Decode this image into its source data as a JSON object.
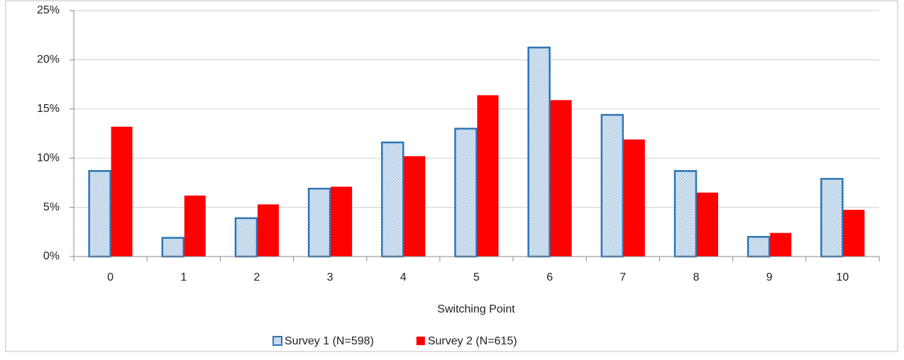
{
  "chart_data": {
    "type": "bar",
    "x_label": "Switching Point",
    "categories": [
      "0",
      "1",
      "2",
      "3",
      "4",
      "5",
      "6",
      "7",
      "8",
      "9",
      "10"
    ],
    "series": [
      {
        "name": "Survey 1 (N=598)",
        "color": "#2e75b6",
        "values": [
          8.7,
          1.9,
          3.9,
          6.9,
          11.6,
          13.0,
          21.25,
          14.4,
          8.7,
          2.0,
          7.9
        ]
      },
      {
        "name": "Survey 2 (N=615)",
        "color": "#ff0000",
        "values": [
          13.2,
          6.2,
          5.3,
          7.1,
          10.2,
          16.4,
          15.9,
          11.9,
          6.5,
          2.4,
          4.75
        ]
      }
    ],
    "ylim": [
      0,
      25
    ],
    "yticks": [
      {
        "value": 0,
        "label": "0%"
      },
      {
        "value": 5,
        "label": "5%"
      },
      {
        "value": 10,
        "label": "10%"
      },
      {
        "value": 15,
        "label": "15%"
      },
      {
        "value": 20,
        "label": "20%"
      },
      {
        "value": 25,
        "label": "25%"
      }
    ],
    "grid": true,
    "legend": "bottom"
  }
}
